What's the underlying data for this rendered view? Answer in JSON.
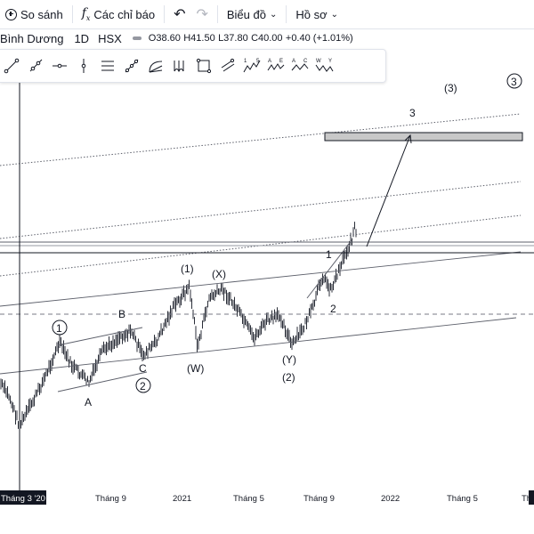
{
  "toolbar": {
    "compare_label": "So sánh",
    "indicators_label": "Các chỉ báo",
    "charts_label": "Biểu đồ",
    "profile_label": "Hồ sơ"
  },
  "legend": {
    "symbol_name": "Bình Dương",
    "interval": "1D",
    "exchange": "HSX",
    "open": "O38.60",
    "high": "H41.50",
    "low": "L37.80",
    "close": "C40.00",
    "change": "+0.40 (+1.01%)"
  },
  "drawing_tools": [
    {
      "name": "trend-line-icon"
    },
    {
      "name": "ray-icon"
    },
    {
      "name": "horizontal-ray-icon"
    },
    {
      "name": "vertical-line-icon"
    },
    {
      "name": "parallel-channel-icon"
    },
    {
      "name": "pitchfork-icon"
    },
    {
      "name": "fib-fan-icon"
    },
    {
      "name": "cycle-lines-icon"
    },
    {
      "name": "rectangle-icon"
    },
    {
      "name": "trend-channel-icon"
    },
    {
      "name": "elliott-impulse-icon",
      "label": "1 5"
    },
    {
      "name": "elliott-correction-icon",
      "label": "A E"
    },
    {
      "name": "elliott-triangle-icon",
      "label": "A C"
    },
    {
      "name": "elliott-combo-icon",
      "label": "W Y"
    }
  ],
  "x_axis_labels": [
    "Tháng 3 '20",
    "Tháng 9",
    "2021",
    "Tháng 5",
    "Tháng 9",
    "2022",
    "Tháng 5",
    "Th"
  ],
  "wave_labels": {
    "top_3_paren": "(3)",
    "top_3_circle": "3",
    "target_3": "3",
    "w1_paren": "(1)",
    "x_paren": "(X)",
    "w_paren": "(W)",
    "y_paren": "(Y)",
    "w2_paren": "(2)",
    "circle_1": "1",
    "circle_2": "2",
    "b": "B",
    "a": "A",
    "c": "C",
    "minor_1": "1",
    "minor_2": "2"
  },
  "colors": {
    "candle": "#131722",
    "volume_up": "#f4a6b2",
    "volume_down": "#a3d1cc",
    "line": "#131722",
    "target_box": "#c8c8c8"
  }
}
